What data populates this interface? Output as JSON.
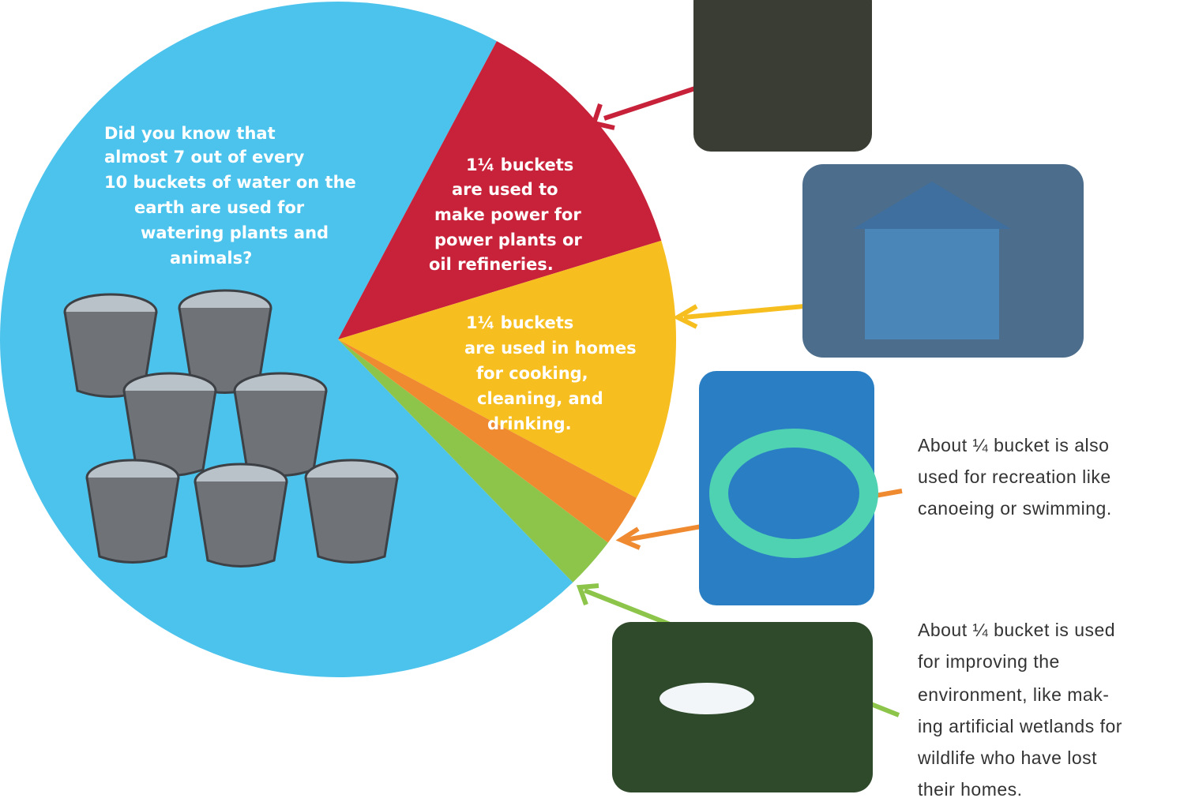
{
  "chart_data": {
    "type": "pie",
    "values": [
      7,
      1.25,
      1.25,
      0.25,
      0.25
    ],
    "colors": [
      "#4cc3ec",
      "#c8223a",
      "#f6be1e",
      "#f08a30",
      "#8cc54a"
    ],
    "annotations": [
      {
        "lines": [
          "Did you know that",
          "almost 7 out of every",
          "10 buckets of water on the",
          "earth are used for",
          "watering plants and",
          "animals?"
        ]
      },
      {
        "lines": [
          "1¼ buckets",
          "are used to",
          "make power for",
          "power plants or",
          "oil refineries."
        ]
      },
      {
        "lines": [
          "1¼ buckets",
          "are used in homes",
          "for cooking,",
          "cleaning, and",
          "drinking."
        ]
      },
      {
        "lines": [
          "About ¼ bucket is also",
          "used for recreation like",
          "canoeing or swimming."
        ]
      },
      {
        "lines": [
          "About ¼ bucket is used",
          "for improving the",
          "environment, like mak-",
          "ing artificial wetlands for",
          "wildlife who have lost",
          "their homes."
        ]
      }
    ]
  }
}
